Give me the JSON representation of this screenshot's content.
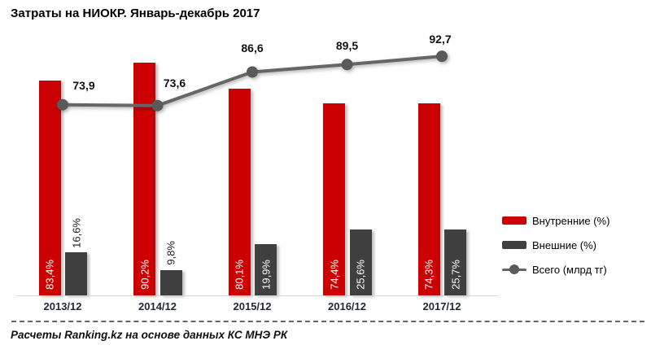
{
  "title": "Затраты на НИОКР. Январь-декабрь 2017",
  "footer": {
    "source": "Расчеты Ranking.kz на основе данных КС МНЭ РК"
  },
  "colors": {
    "internal_bar": "#cc0000",
    "external_bar": "#404040",
    "total_line": "#666666",
    "total_marker": "#595959",
    "axis_line": "#d6d6d6"
  },
  "chart_data": {
    "type": "bar",
    "subtype": "bar-with-line-overlay",
    "title": "Затраты на НИОКР. Январь-декабрь 2017",
    "categories": [
      "2013/12",
      "2014/12",
      "2015/12",
      "2016/12",
      "2017/12"
    ],
    "series": [
      {
        "name": "Внутренние (%)",
        "type": "bar",
        "color": "#cc0000",
        "values": [
          83.4,
          90.2,
          80.1,
          74.4,
          74.3
        ],
        "labels": [
          "83,4%",
          "90,2%",
          "80,1%",
          "74,4%",
          "74,3%"
        ]
      },
      {
        "name": "Внешние (%)",
        "type": "bar",
        "color": "#404040",
        "values": [
          16.6,
          9.8,
          19.9,
          25.6,
          25.7
        ],
        "labels": [
          "16,6%",
          "9,8%",
          "19,9%",
          "25,6%",
          "25,7%"
        ]
      },
      {
        "name": "Всего (млрд тг)",
        "type": "line",
        "color": "#666666",
        "marker_color": "#595959",
        "values": [
          73.9,
          73.6,
          86.6,
          89.5,
          92.7
        ],
        "labels": [
          "73,9",
          "73,6",
          "86,6",
          "89,5",
          "92,7"
        ]
      }
    ],
    "xlabel": "",
    "ylabel": "",
    "ylim": [
      0,
      100
    ],
    "grid": false,
    "legend_position": "right",
    "value_axis_hidden": true
  }
}
